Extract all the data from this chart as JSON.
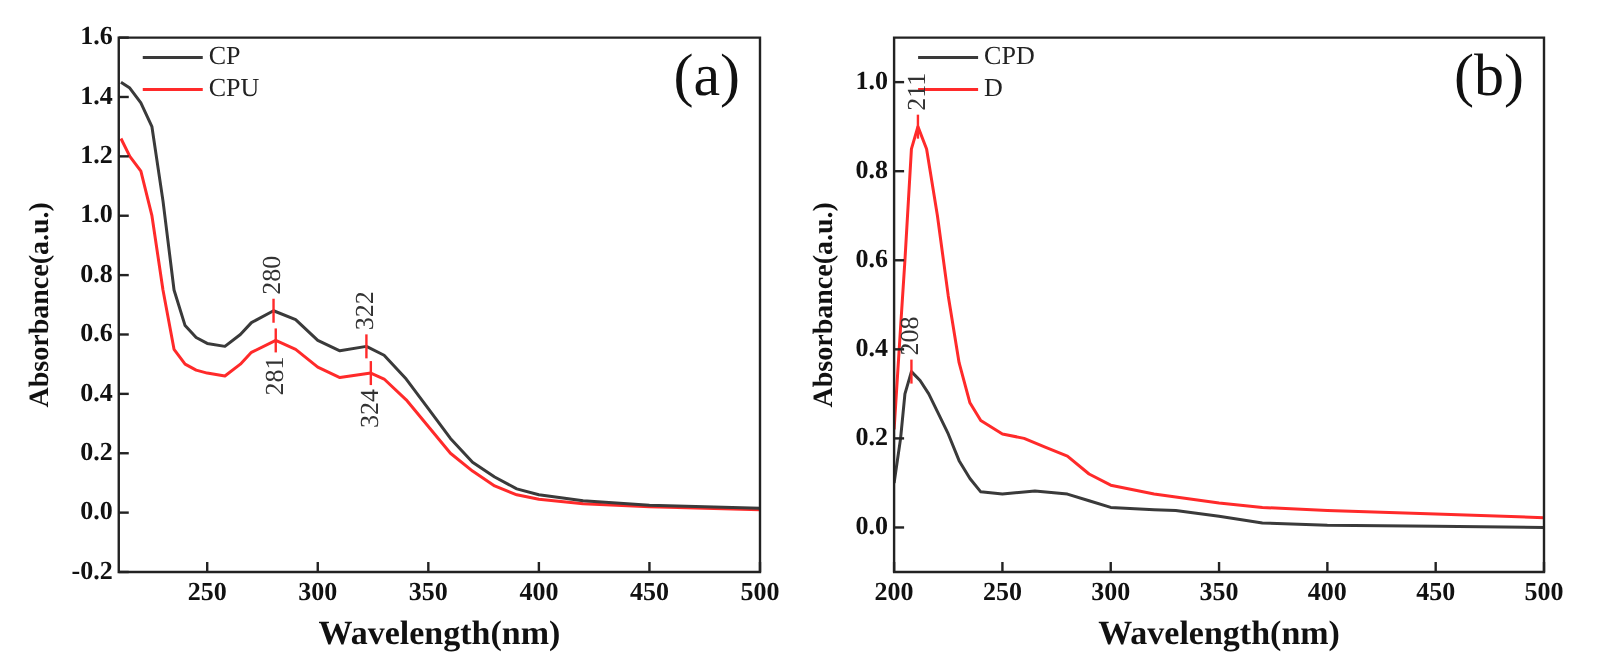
{
  "chart_data": [
    {
      "type": "line",
      "title": "(a)",
      "xlabel": "Wavelength(nm)",
      "ylabel": "Absorbance(a.u.)",
      "xlim": [
        210,
        500
      ],
      "xticks": [
        250,
        300,
        350,
        400,
        450,
        500
      ],
      "ylim": [
        -0.2,
        1.6
      ],
      "yticks": [
        {
          "value": -0.2,
          "label": "-0.2"
        },
        {
          "value": 0,
          "label": "0.0"
        },
        {
          "value": 0.2,
          "label": "0.2"
        },
        {
          "value": 0.4,
          "label": "0.4"
        },
        {
          "value": 0.6,
          "label": "0.6"
        },
        {
          "value": 0.8,
          "label": "0.8"
        },
        {
          "value": 1,
          "label": "1.0"
        },
        {
          "value": 1.2,
          "label": "1.2"
        },
        {
          "value": 1.4,
          "label": "1.4"
        },
        {
          "value": 1.6,
          "label": "1.6"
        }
      ],
      "grid": false,
      "legend": "top left",
      "marker": "none",
      "line_style": "solid",
      "series": [
        {
          "name": "CP",
          "color": "#3a3a3a",
          "x": [
            211,
            215,
            220,
            225,
            230,
            235,
            240,
            245,
            250,
            258,
            265,
            270,
            280,
            290,
            300,
            310,
            322,
            330,
            340,
            350,
            360,
            370,
            380,
            390,
            400,
            420,
            450,
            500
          ],
          "values": [
            1.45,
            1.43,
            1.38,
            1.3,
            1.05,
            0.75,
            0.63,
            0.59,
            0.57,
            0.56,
            0.6,
            0.64,
            0.68,
            0.65,
            0.58,
            0.545,
            0.56,
            0.53,
            0.45,
            0.35,
            0.25,
            0.17,
            0.12,
            0.08,
            0.06,
            0.04,
            0.025,
            0.015
          ]
        },
        {
          "name": "CPU",
          "color": "#ff2a2a",
          "x": [
            211,
            215,
            220,
            225,
            230,
            235,
            240,
            245,
            250,
            258,
            265,
            270,
            281,
            290,
            300,
            310,
            324,
            330,
            340,
            350,
            360,
            370,
            380,
            390,
            400,
            420,
            450,
            500
          ],
          "values": [
            1.26,
            1.2,
            1.15,
            1.0,
            0.75,
            0.55,
            0.5,
            0.48,
            0.47,
            0.46,
            0.5,
            0.54,
            0.58,
            0.55,
            0.49,
            0.455,
            0.47,
            0.45,
            0.38,
            0.29,
            0.2,
            0.14,
            0.09,
            0.06,
            0.045,
            0.03,
            0.02,
            0.01
          ]
        }
      ],
      "annotations": [
        {
          "text": "280",
          "x": 280,
          "y": 0.68
        },
        {
          "text": "322",
          "x": 322,
          "y": 0.56
        },
        {
          "text": "281",
          "x": 281,
          "y": 0.58
        },
        {
          "text": "324",
          "x": 324,
          "y": 0.47
        }
      ]
    },
    {
      "type": "line",
      "title": "(b)",
      "xlabel": "Wavelength(nm)",
      "ylabel": "Absorbance(a.u.)",
      "xlim": [
        200,
        500
      ],
      "xticks": [
        200,
        250,
        300,
        350,
        400,
        450,
        500
      ],
      "ylim": [
        -0.1,
        1.1
      ],
      "yticks": [
        {
          "value": 0,
          "label": "0.0"
        },
        {
          "value": 0.2,
          "label": "0.2"
        },
        {
          "value": 0.4,
          "label": "0.4"
        },
        {
          "value": 0.6,
          "label": "0.6"
        },
        {
          "value": 0.8,
          "label": "0.8"
        },
        {
          "value": 1,
          "label": "1.0"
        }
      ],
      "grid": false,
      "legend": "top left",
      "marker": "none",
      "line_style": "solid",
      "series": [
        {
          "name": "CPD",
          "color": "#3a3a3a",
          "x": [
            200,
            203,
            205,
            208,
            212,
            216,
            220,
            225,
            230,
            235,
            240,
            250,
            265,
            280,
            290,
            300,
            320,
            330,
            350,
            370,
            400,
            450,
            500
          ],
          "values": [
            0.1,
            0.2,
            0.3,
            0.35,
            0.33,
            0.3,
            0.26,
            0.21,
            0.15,
            0.11,
            0.08,
            0.075,
            0.082,
            0.075,
            0.06,
            0.045,
            0.04,
            0.038,
            0.025,
            0.01,
            0.005,
            0.003,
            0.0
          ]
        },
        {
          "name": "D",
          "color": "#ff2a2a",
          "x": [
            200,
            203,
            205,
            208,
            211,
            215,
            220,
            225,
            230,
            235,
            240,
            250,
            260,
            270,
            280,
            290,
            300,
            320,
            350,
            370,
            400,
            450,
            500
          ],
          "values": [
            0.22,
            0.45,
            0.6,
            0.85,
            0.9,
            0.85,
            0.7,
            0.52,
            0.37,
            0.28,
            0.24,
            0.21,
            0.2,
            0.18,
            0.16,
            0.12,
            0.095,
            0.075,
            0.055,
            0.045,
            0.038,
            0.03,
            0.022
          ]
        }
      ],
      "annotations": [
        {
          "text": "211",
          "x": 211,
          "y": 0.9
        },
        {
          "text": "208",
          "x": 208,
          "y": 0.35
        }
      ]
    }
  ]
}
